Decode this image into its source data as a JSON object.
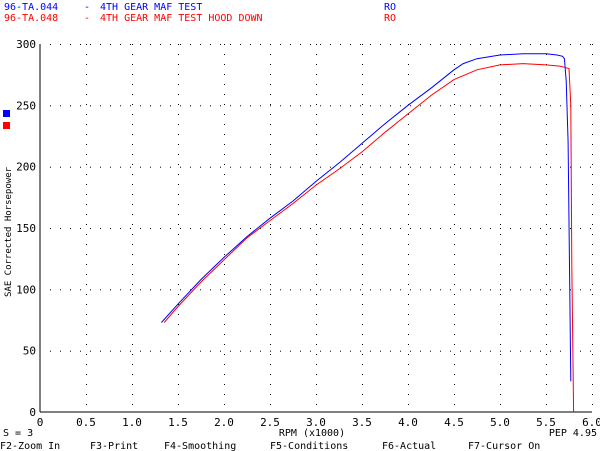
{
  "legend": [
    {
      "file": "96-TA.044",
      "sep": "-",
      "desc": "4TH GEAR MAF TEST",
      "tag": "RO",
      "color": "#0000ff"
    },
    {
      "file": "96-TA.048",
      "sep": "-",
      "desc": "4TH GEAR MAF TEST HOOD DOWN",
      "tag": "RO",
      "color": "#ff0000"
    }
  ],
  "status": {
    "smoothing": "S = 3",
    "cursor": "PEP 4.95"
  },
  "function_keys": [
    {
      "key": "F2",
      "label": "Zoom In"
    },
    {
      "key": "F3",
      "label": "Print"
    },
    {
      "key": "F4",
      "label": "Smoothing"
    },
    {
      "key": "F5",
      "label": "Conditions"
    },
    {
      "key": "F6",
      "label": "Actual"
    },
    {
      "key": "F7",
      "label": "Cursor On"
    }
  ],
  "chart_data": {
    "type": "line",
    "xlabel": "RPM (x1000)",
    "ylabel": "SAE Corrected Horsepower",
    "xlim": [
      0,
      6.0
    ],
    "ylim": [
      0,
      300
    ],
    "xticks": [
      "0",
      "0.5",
      "1.0",
      "1.5",
      "2.0",
      "2.5",
      "3.0",
      "3.5",
      "4.0",
      "4.5",
      "5.0",
      "5.5",
      "6.0"
    ],
    "yticks": [
      "0",
      "50",
      "100",
      "150",
      "200",
      "250",
      "300"
    ],
    "grid": "dotted",
    "legend_position": "top-left",
    "series": [
      {
        "name": "96-TA.044 - 4TH GEAR MAF TEST",
        "color": "#0000ff",
        "x": [
          1.32,
          1.5,
          1.75,
          2.0,
          2.25,
          2.5,
          2.75,
          3.0,
          3.25,
          3.5,
          3.75,
          4.0,
          4.25,
          4.5,
          4.6,
          4.75,
          5.0,
          5.25,
          5.5,
          5.62,
          5.68,
          5.7,
          5.72,
          5.74,
          5.77
        ],
        "y": [
          73,
          88,
          108,
          126,
          143,
          158,
          172,
          188,
          203,
          219,
          235,
          250,
          264,
          279,
          284,
          288,
          291,
          292,
          292,
          291,
          290,
          288,
          270,
          220,
          25
        ]
      },
      {
        "name": "96-TA.048 - 4TH GEAR MAF TEST HOOD DOWN",
        "color": "#ff0000",
        "x": [
          1.35,
          1.5,
          1.75,
          2.0,
          2.25,
          2.5,
          2.75,
          3.0,
          3.25,
          3.5,
          3.75,
          4.0,
          4.25,
          4.5,
          4.75,
          5.0,
          5.25,
          5.5,
          5.65,
          5.7,
          5.75,
          5.77,
          5.78,
          5.8
        ],
        "y": [
          73,
          86,
          106,
          124,
          142,
          156,
          170,
          185,
          198,
          212,
          228,
          243,
          258,
          271,
          279,
          283,
          284,
          283,
          282,
          281,
          280,
          250,
          120,
          0
        ]
      }
    ]
  }
}
